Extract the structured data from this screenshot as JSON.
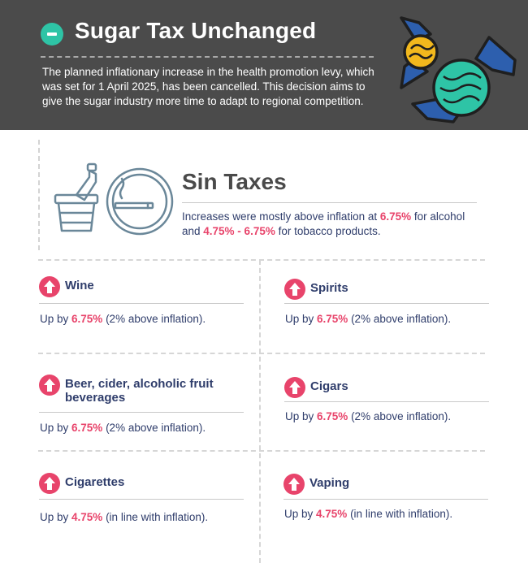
{
  "header": {
    "title": "Sugar Tax Unchanged",
    "description": "The planned inflationary increase in the health promotion levy, which was set for 1 April 2025, has been cancelled. This decision aims to give the sugar industry more time to adapt to regional competition."
  },
  "sin_taxes": {
    "title": "Sin Taxes",
    "desc_part1": "Increases were mostly above inflation at ",
    "desc_rate1": "6.75%",
    "desc_part2": " for alcohol and ",
    "desc_rate2": "4.75% - 6.75%",
    "desc_part3": " for tobacco products."
  },
  "items": [
    {
      "title": "Wine",
      "prefix": "Up by ",
      "rate": "6.75%",
      "suffix": " (2% above inflation)."
    },
    {
      "title": "Spirits",
      "prefix": "Up by ",
      "rate": "6.75%",
      "suffix": " (2% above inflation)."
    },
    {
      "title": "Beer, cider, alcoholic fruit beverages",
      "prefix": "Up by ",
      "rate": "6.75%",
      "suffix": " (2% above inflation)."
    },
    {
      "title": "Cigars",
      "prefix": "Up by ",
      "rate": "6.75%",
      "suffix": " (2% above inflation)."
    },
    {
      "title": "Cigarettes",
      "prefix": "Up by ",
      "rate": "4.75%",
      "suffix": " (in line with inflation)."
    },
    {
      "title": "Vaping",
      "prefix": "Up by ",
      "rate": "4.75%",
      "suffix": " (in line with inflation)."
    }
  ],
  "icons": {
    "header_badge": "minus-icon",
    "header_art": "candy-icon",
    "sin_art_1": "wine-bucket-icon",
    "sin_art_2": "no-smoking-icon",
    "item_badge": "arrow-up-icon"
  },
  "colors": {
    "header_bg": "#4b4b4b",
    "minus_badge": "#2ec4a6",
    "highlight": "#e8446b",
    "text": "#2f3d6b",
    "candy_yellow": "#f2b81d",
    "candy_green": "#2ec4a6",
    "candy_blue": "#2d5fae"
  }
}
